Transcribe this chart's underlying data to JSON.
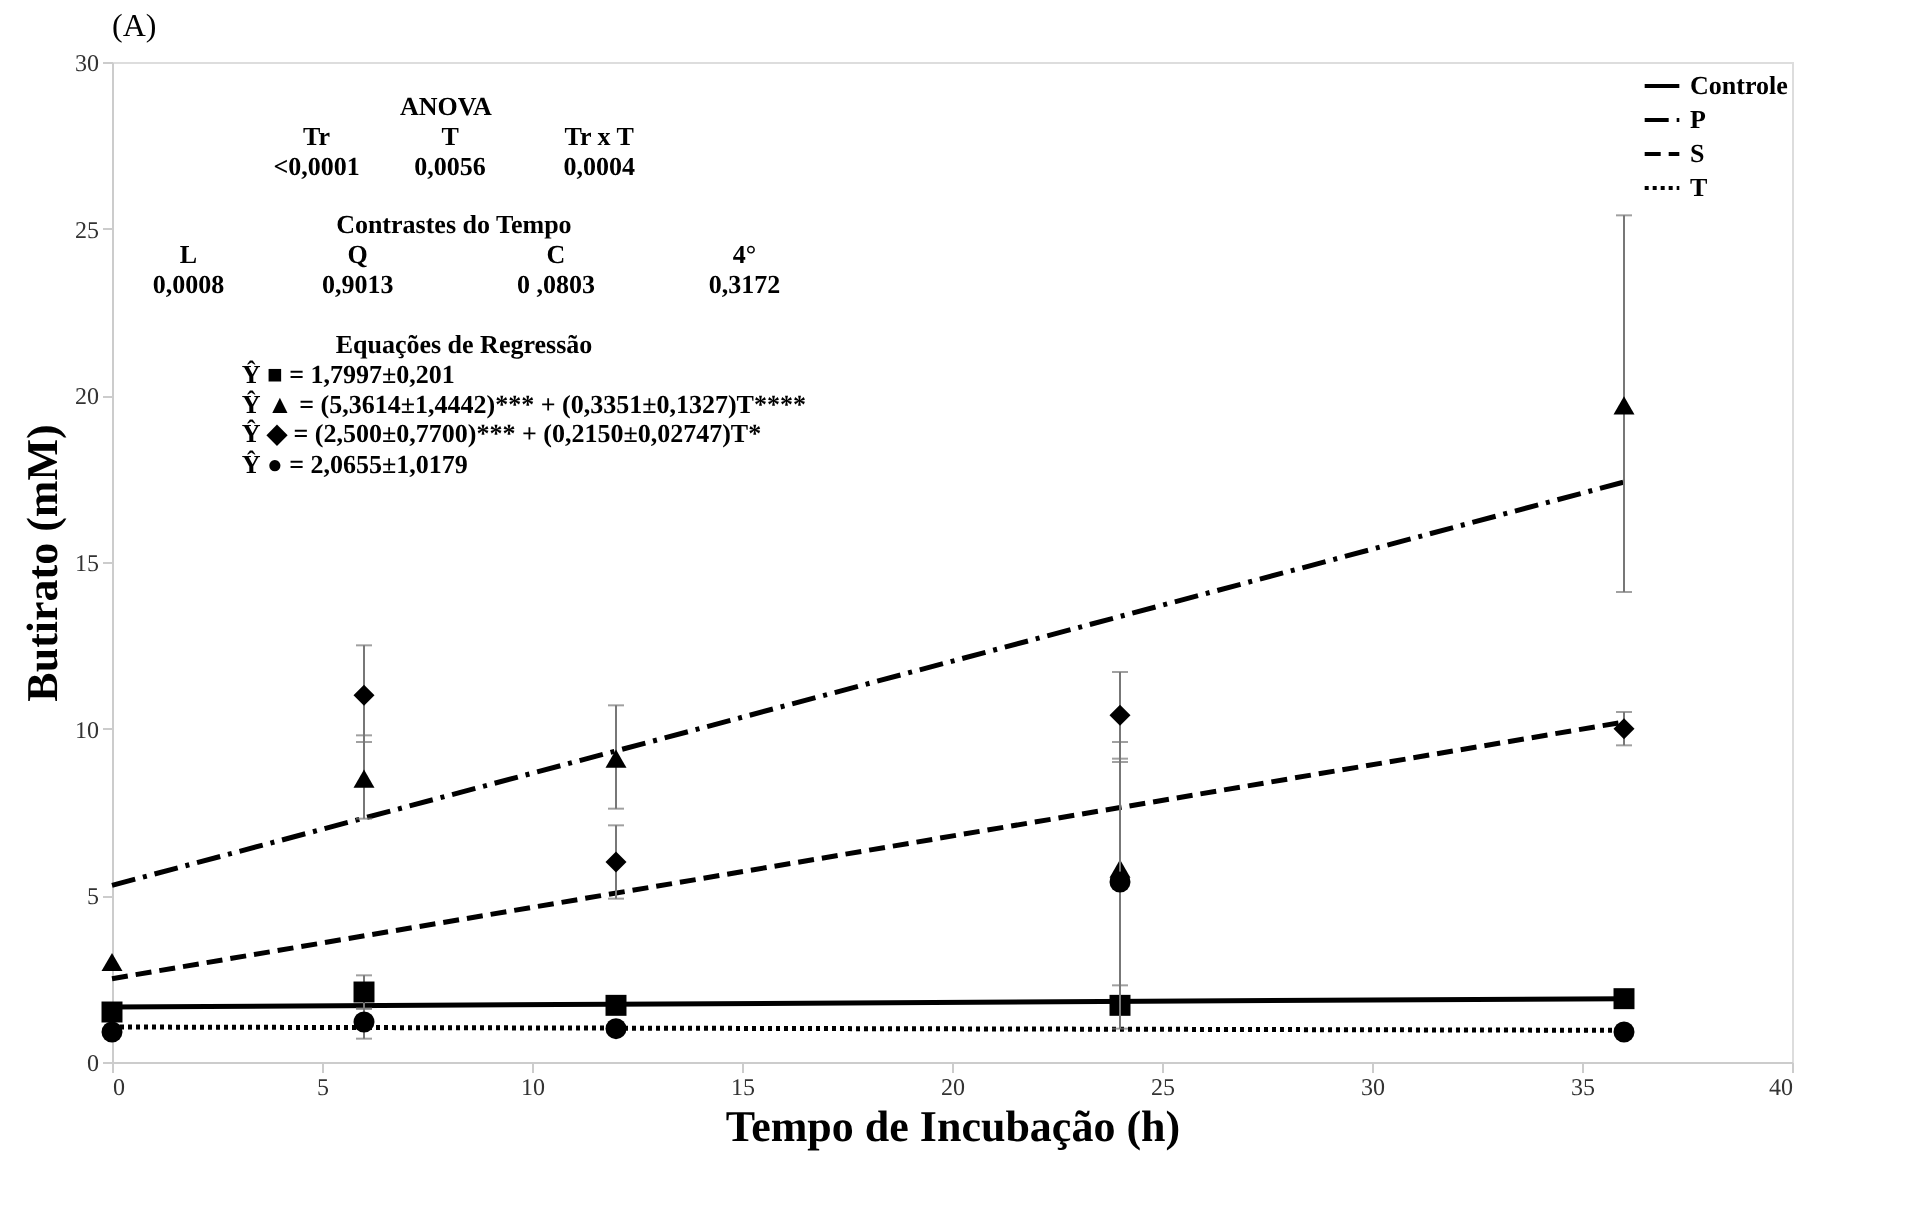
{
  "chart_data": {
    "type": "scatter",
    "title": "(A)",
    "xlabel": "Tempo de Incubação (h)",
    "ylabel": "Butirato (mM)",
    "xlim": [
      0,
      40
    ],
    "xticks": [
      0,
      5,
      10,
      15,
      20,
      25,
      30,
      35,
      40
    ],
    "ylim": [
      0,
      30
    ],
    "yticks": [
      0,
      5,
      10,
      15,
      20,
      25,
      30
    ],
    "grid": false,
    "legend": "top right",
    "annotations": [
      "ANOVA",
      "Tr",
      "T",
      "Tr x T",
      "<0,0001",
      "0,0056",
      "0,0004",
      "Contrastes do Tempo",
      "L",
      "Q",
      "C",
      "4°",
      "0,0008",
      "0,9013",
      "0 ,0803",
      "0,3172",
      "Equações de Regressão",
      "Ŷ ■ =  1,7997±0,201",
      "Ŷ ▲ = (5,3614±1,4442)*** + (0,3351±0,1327)T****",
      "Ŷ ◆ = (2,500±0,7700)*** + (0,2150±0,02747)T*",
      "Ŷ ● = 2,0655±1,0179"
    ],
    "series": [
      {
        "name": "Controle",
        "type": "line",
        "color": "#000000",
        "line_style": "solid",
        "x": [
          0,
          36
        ],
        "values": [
          1.65,
          1.9
        ]
      },
      {
        "name": "P",
        "type": "line",
        "color": "#000000",
        "line_style": "dashdot",
        "x": [
          0,
          36
        ],
        "values": [
          5.3,
          17.4
        ]
      },
      {
        "name": "S",
        "type": "line",
        "color": "#000000",
        "line_style": "dashed",
        "x": [
          0,
          36
        ],
        "values": [
          2.5,
          10.2
        ]
      },
      {
        "name": "T",
        "type": "line",
        "color": "#000000",
        "line_style": "dotted",
        "x": [
          0,
          36
        ],
        "values": [
          1.05,
          0.95
        ]
      },
      {
        "color": "#000000",
        "marker": "square",
        "x": [
          0,
          6,
          12,
          24,
          36
        ],
        "values": [
          1.5,
          2.1,
          1.7,
          1.7,
          1.9
        ],
        "errors": [
          null,
          [
            1.6,
            2.6
          ],
          null,
          null,
          null
        ]
      },
      {
        "color": "#000000",
        "marker": "triangle",
        "x": [
          0,
          6,
          12,
          24,
          36
        ],
        "values": [
          3.0,
          8.5,
          9.1,
          5.8,
          19.7
        ],
        "errors": [
          null,
          [
            7.3,
            9.8
          ],
          [
            7.6,
            10.7
          ],
          [
            2.3,
            9.0
          ],
          [
            14.1,
            25.4
          ]
        ]
      },
      {
        "color": "#000000",
        "marker": "diamond",
        "x": [
          6,
          12,
          24,
          36
        ],
        "values": [
          11.0,
          6.0,
          10.4,
          10.0
        ],
        "errors": [
          [
            9.6,
            12.5
          ],
          [
            4.9,
            7.1
          ],
          [
            9.1,
            11.7
          ],
          [
            9.5,
            10.5
          ]
        ]
      },
      {
        "color": "#000000",
        "marker": "circle",
        "x": [
          0,
          6,
          12,
          24,
          36
        ],
        "values": [
          0.9,
          1.2,
          1.0,
          5.4,
          0.9
        ],
        "errors": [
          null,
          [
            0.7,
            1.6
          ],
          null,
          [
            1.0,
            9.6
          ],
          null
        ]
      }
    ]
  }
}
